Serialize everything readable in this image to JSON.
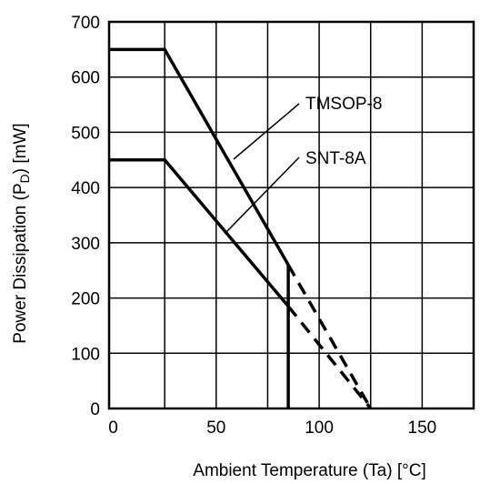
{
  "chart_data": {
    "type": "line",
    "xlabel": "Ambient Temperature (Ta) [°C]",
    "ylabel_parts": [
      "Power Dissipation (P",
      "D",
      ") [mW]"
    ],
    "xlim": [
      -2,
      175
    ],
    "ylim": [
      0,
      700
    ],
    "x_ticks": [
      0,
      50,
      100,
      150
    ],
    "y_ticks": [
      0,
      100,
      200,
      300,
      400,
      500,
      600,
      700
    ],
    "x_gridlines": [
      25,
      50,
      75,
      100,
      125,
      150
    ],
    "y_gridlines": [
      100,
      200,
      300,
      400,
      500,
      600
    ],
    "grid": true,
    "series": [
      {
        "name": "TMSOP-8",
        "x": [
          -2,
          25,
          85,
          125
        ],
        "y": [
          650,
          650,
          260,
          0
        ],
        "solid_until_x": 85
      },
      {
        "name": "SNT-8A",
        "x": [
          -2,
          25,
          85,
          125
        ],
        "y": [
          450,
          450,
          185,
          0
        ],
        "solid_until_x": 85
      }
    ],
    "drop_line": {
      "x": 85,
      "y_from": 0,
      "y_to": 260
    }
  }
}
